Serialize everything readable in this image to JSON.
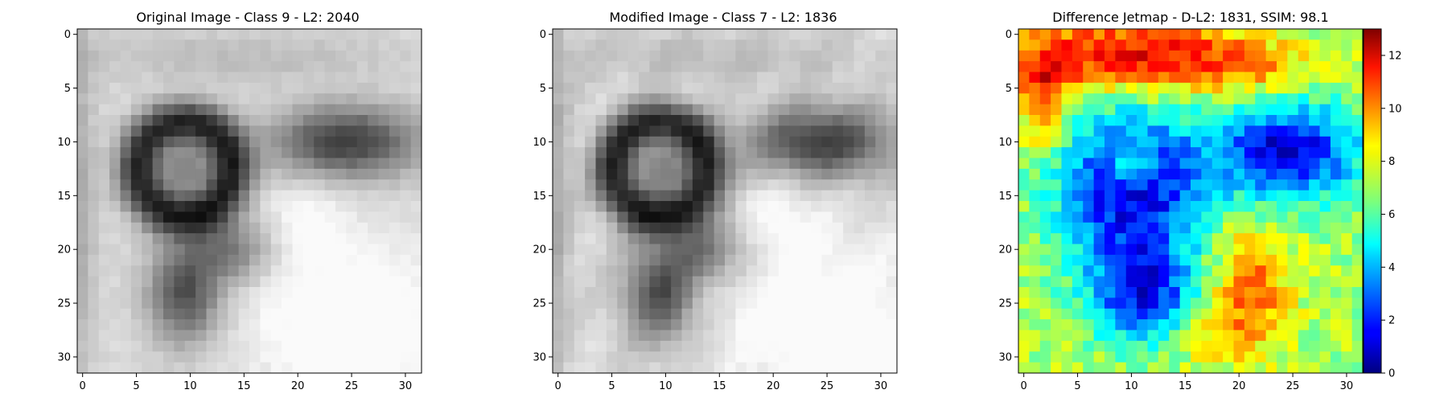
{
  "figure": {
    "panels": [
      {
        "title": "Original Image - Class 9 - L2: 2040",
        "title_color": "#000000"
      },
      {
        "title": "Modified Image - Class 7 - L2: 1836",
        "title_color": "#ff0000"
      },
      {
        "title": "Difference Jetmap - D-L2: 1831, SSIM: 98.1",
        "title_color": "#000000"
      }
    ],
    "colorbar": {
      "range": [
        0,
        13
      ],
      "ticks": [
        "0",
        "2",
        "4",
        "6",
        "8",
        "10",
        "12"
      ],
      "colormap": "jet"
    }
  },
  "chart_data": [
    {
      "type": "heatmap",
      "title": "Original Image - Class 9 - L2: 2040",
      "colormap": "gray",
      "grid_size": [
        32,
        32
      ],
      "xlim": [
        -0.5,
        31.5
      ],
      "ylim": [
        31.5,
        -0.5
      ],
      "x_ticks": [
        0,
        5,
        10,
        15,
        20,
        25,
        30
      ],
      "y_ticks": [
        0,
        5,
        10,
        15,
        20,
        25,
        30
      ],
      "grid": false
    },
    {
      "type": "heatmap",
      "title": "Modified Image - Class 7 - L2: 1836",
      "colormap": "gray",
      "grid_size": [
        32,
        32
      ],
      "xlim": [
        -0.5,
        31.5
      ],
      "ylim": [
        31.5,
        -0.5
      ],
      "x_ticks": [
        0,
        5,
        10,
        15,
        20,
        25,
        30
      ],
      "y_ticks": [
        0,
        5,
        10,
        15,
        20,
        25,
        30
      ],
      "grid": false
    },
    {
      "type": "heatmap",
      "title": "Difference Jetmap - D-L2: 1831, SSIM: 98.1",
      "colormap": "jet",
      "grid_size": [
        32,
        32
      ],
      "value_range": [
        0,
        13
      ],
      "xlim": [
        -0.5,
        31.5
      ],
      "ylim": [
        31.5,
        -0.5
      ],
      "x_ticks": [
        0,
        5,
        10,
        15,
        20,
        25,
        30
      ],
      "y_ticks": [
        0,
        5,
        10,
        15,
        20,
        25,
        30
      ],
      "grid": false
    }
  ]
}
